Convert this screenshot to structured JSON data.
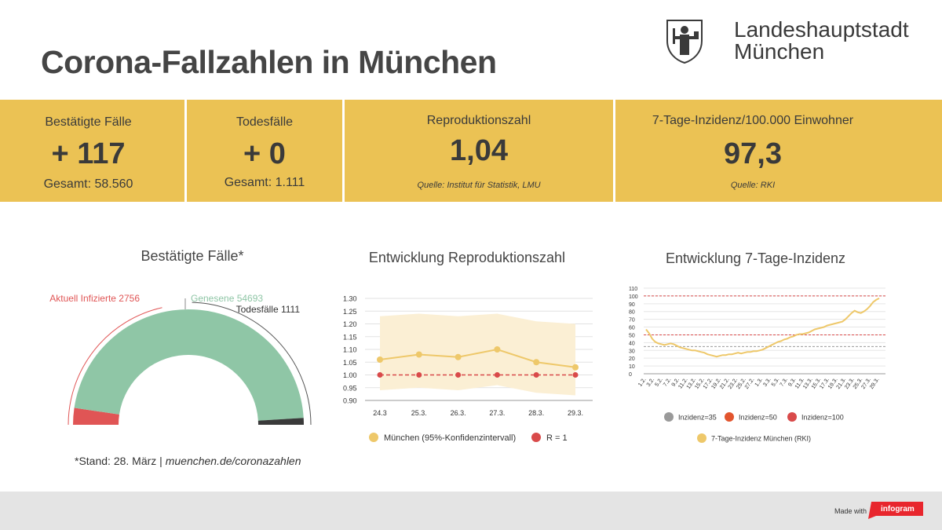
{
  "header": {
    "title": "Corona-Fallzahlen in München",
    "logo_line1": "Landeshauptstadt",
    "logo_line2": "München"
  },
  "kpis": {
    "cases": {
      "label": "Bestätigte Fälle",
      "value": "+ 117",
      "total": "Gesamt: 58.560"
    },
    "deaths": {
      "label": "Todesfälle",
      "value": "+ 0",
      "total": "Gesamt: 1.111"
    },
    "r_value": {
      "label": "Reproduktionszahl",
      "value": "1,04",
      "source": "Quelle: Institut für Statistik, LMU"
    },
    "incidence": {
      "label": "7-Tage-Inzidenz/100.000 Einwohner",
      "value": "97,3",
      "source": "Quelle: RKI"
    }
  },
  "panels": {
    "gauge_title": "Bestätigte Fälle*",
    "r_title": "Entwicklung Reproduktionszahl",
    "inc_title": "Entwicklung 7-Tage-Inzidenz"
  },
  "footnote": {
    "prefix": "*Stand: 28. März | ",
    "link": "muenchen.de/coronazahlen"
  },
  "footer": {
    "made_with": "Made with",
    "brand": "infogram"
  },
  "colors": {
    "kpi_band": "#ebc254",
    "aktuell": "#e05555",
    "genesene": "#8fc6a6",
    "todesfaelle": "#3a3a3a",
    "yellow_line": "#eec86a",
    "conf_band": "#fbefd4",
    "red_dash": "#d94a4a",
    "grey_dash": "#9a9a9a",
    "orange_dash": "#e2552e"
  },
  "chart_data": [
    {
      "type": "pie",
      "variant": "semicircle-gauge",
      "labels": [
        "Aktuell Infizierte 2756",
        "Genesene 54693",
        "Todesfälle 1111"
      ],
      "values": [
        2756,
        54693,
        1111
      ]
    },
    {
      "type": "line",
      "categories": [
        "24.3",
        "25.3.",
        "26.3.",
        "27.3.",
        "28.3.",
        "29.3."
      ],
      "yticks": [
        "1.30",
        "1.25",
        "1.20",
        "1.15",
        "1.10",
        "1.05",
        "1.00",
        "0.95",
        "0.90"
      ],
      "ylim": [
        0.9,
        1.3
      ],
      "series": [
        {
          "name": "München (95%-Konfidenzintervall)",
          "values": [
            1.06,
            1.08,
            1.07,
            1.1,
            1.05,
            1.03
          ],
          "upper": [
            1.23,
            1.24,
            1.23,
            1.24,
            1.21,
            1.2
          ],
          "lower": [
            0.94,
            0.95,
            0.94,
            0.96,
            0.93,
            0.92
          ]
        },
        {
          "name": "R = 1",
          "values": [
            1.0,
            1.0,
            1.0,
            1.0,
            1.0,
            1.0
          ]
        }
      ]
    },
    {
      "type": "line",
      "x_tick_labels": [
        "1.2.",
        "3.2.",
        "5.2.",
        "7.2.",
        "9.2.",
        "11.2.",
        "13.2.",
        "15.2.",
        "17.2.",
        "19.2.",
        "21.2.",
        "23.2.",
        "25.2.",
        "27.2.",
        "1.3.",
        "3.3.",
        "5.3.",
        "7.3.",
        "9.3.",
        "11.3.",
        "13.3.",
        "15.3.",
        "17.3.",
        "19.3.",
        "21.3.",
        "23.3.",
        "25.3.",
        "27.3.",
        "29.3."
      ],
      "yticks": [
        "110",
        "100",
        "90",
        "80",
        "70",
        "60",
        "50",
        "40",
        "30",
        "20",
        "10",
        "0"
      ],
      "ylim": [
        0,
        110
      ],
      "series": [
        {
          "name": "7-Tage-Inzidenz München (RKI)",
          "values": [
            57,
            52,
            45,
            41,
            39,
            38,
            37,
            38,
            39,
            38,
            36,
            34,
            33,
            32,
            31,
            30,
            30,
            29,
            28,
            27,
            25,
            24,
            23,
            22,
            23,
            24,
            24,
            25,
            25,
            26,
            27,
            26,
            27,
            28,
            28,
            29,
            29,
            30,
            31,
            33,
            35,
            37,
            39,
            41,
            42,
            44,
            45,
            47,
            48,
            50,
            51,
            51,
            52,
            53,
            55,
            57,
            58,
            59,
            60,
            62,
            63,
            64,
            65,
            66,
            67,
            70,
            74,
            78,
            81,
            79,
            78,
            80,
            83,
            87,
            92,
            95,
            97
          ]
        },
        {
          "name": "Inzidenz=35",
          "values": [
            35
          ]
        },
        {
          "name": "Inzidenz=50",
          "values": [
            50
          ]
        },
        {
          "name": "Inzidenz=100",
          "values": [
            100
          ]
        }
      ]
    }
  ]
}
